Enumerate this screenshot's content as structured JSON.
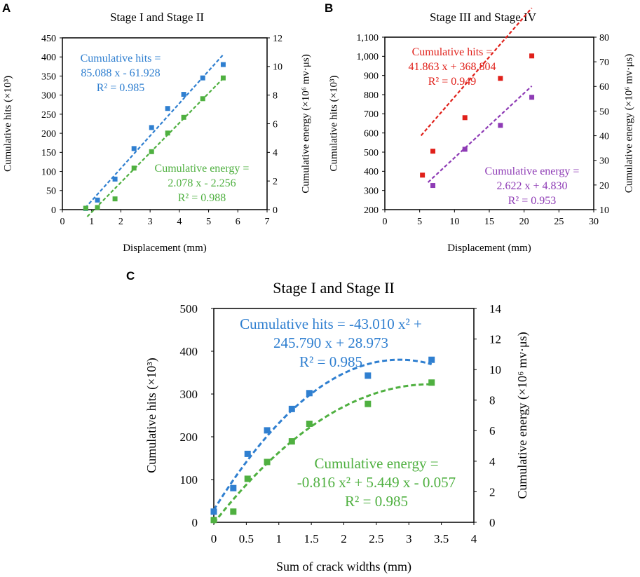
{
  "chart_data": [
    {
      "panel": "A",
      "type": "scatter",
      "title": "Stage I and Stage II",
      "xlabel": "Displacement (mm)",
      "ylabel": "Cumulative hits (×10³)",
      "y2label": "Cumulative energy (×10⁶ mv·μs)",
      "xlim": [
        0,
        7
      ],
      "x_ticks": [
        0,
        1,
        2,
        3,
        4,
        5,
        6,
        7
      ],
      "ylim": [
        0,
        450
      ],
      "y_ticks": [
        0,
        50,
        100,
        150,
        200,
        250,
        300,
        350,
        400,
        450
      ],
      "y2lim": [
        0,
        12
      ],
      "y2_ticks": [
        0,
        2,
        4,
        6,
        8,
        10,
        12
      ],
      "series": [
        {
          "name": "Cumulative hits",
          "axis": "left",
          "color": "#2f7fd0",
          "x": [
            0.8,
            1.2,
            1.8,
            2.45,
            3.05,
            3.6,
            4.15,
            4.8,
            5.5
          ],
          "y": [
            3,
            25,
            80,
            160,
            215,
            265,
            302,
            345,
            380
          ],
          "fit": {
            "kind": "linear",
            "coef": [
              85.088,
              -61.928
            ],
            "x_range": [
              0.78,
              5.5
            ]
          },
          "annotation": [
            "Cumulative hits =",
            "85.088 x - 61.928",
            "R² = 0.985"
          ]
        },
        {
          "name": "Cumulative energy",
          "axis": "right",
          "color": "#4fb040",
          "x": [
            0.8,
            1.2,
            1.8,
            2.45,
            3.05,
            3.6,
            4.15,
            4.8,
            5.5
          ],
          "y": [
            0.1,
            0.15,
            0.75,
            2.9,
            4.05,
            5.35,
            6.45,
            7.75,
            9.2
          ],
          "fit": {
            "kind": "linear",
            "coef": [
              2.078,
              -2.256
            ],
            "x_range": [
              0.85,
              5.5
            ]
          },
          "annotation": [
            "Cumulative energy =",
            "2.078 x - 2.256",
            "R² = 0.988"
          ]
        }
      ]
    },
    {
      "panel": "B",
      "type": "scatter",
      "title": "Stage III and Stage IV",
      "xlabel": "Displacement (mm)",
      "ylabel": "Cumulative hits (×10³)",
      "y2label": "Cumulative energy (×10⁶ mv·μs)",
      "xlim": [
        0,
        30
      ],
      "x_ticks": [
        0,
        5,
        10,
        15,
        20,
        25,
        30
      ],
      "ylim": [
        200,
        1100
      ],
      "y_ticks": [
        200,
        300,
        400,
        500,
        600,
        700,
        800,
        900,
        1000,
        1100
      ],
      "y_tick_labels": [
        "200",
        "300",
        "400",
        "500",
        "600",
        "700",
        "800",
        "900",
        "1,000",
        "1,100"
      ],
      "y2lim": [
        10,
        80
      ],
      "y2_ticks": [
        10,
        20,
        30,
        40,
        50,
        60,
        70,
        80
      ],
      "series": [
        {
          "name": "Cumulative hits",
          "axis": "left",
          "color": "#e0201a",
          "x": [
            5.4,
            6.9,
            11.5,
            16.6,
            21.1
          ],
          "y": [
            380,
            505,
            680,
            885,
            1002
          ],
          "fit": {
            "kind": "linear",
            "coef": [
              41.863,
              368.804
            ],
            "x_range": [
              5.2,
              21.1
            ]
          },
          "annotation": [
            "Cumulative hits  =",
            "41.863 x + 368.804",
            "R² = 0.949"
          ]
        },
        {
          "name": "Cumulative energy",
          "axis": "right",
          "color": "#8e3bb5",
          "x": [
            6.9,
            11.5,
            16.6,
            21.1
          ],
          "y": [
            19.8,
            34.5,
            44.2,
            55.6
          ],
          "fit": {
            "kind": "linear",
            "coef": [
              2.622,
              4.83
            ],
            "x_range": [
              6.2,
              21.1
            ]
          },
          "annotation": [
            "Cumulative energy =",
            "2.622 x + 4.830",
            "R² = 0.953"
          ]
        }
      ]
    },
    {
      "panel": "C",
      "type": "scatter",
      "title": "Stage I and Stage II",
      "xlabel": "Sum of crack widths (mm)",
      "ylabel": "Cumulative hits (×10³)",
      "y2label": "Cumulative energy (×10⁶ mv·μs)",
      "xlim": [
        0,
        4
      ],
      "x_ticks": [
        0,
        0.5,
        1,
        1.5,
        2,
        2.5,
        3,
        3.5,
        4
      ],
      "x_tick_labels": [
        "0",
        "0.5",
        "1",
        "1.5",
        "2",
        "2.5",
        "3",
        "3.5",
        "4"
      ],
      "ylim": [
        0,
        500
      ],
      "y_ticks": [
        0,
        100,
        200,
        300,
        400,
        500
      ],
      "y2lim": [
        0,
        14
      ],
      "y2_ticks": [
        0,
        2,
        4,
        6,
        8,
        10,
        12,
        14
      ],
      "series": [
        {
          "name": "Cumulative hits",
          "axis": "left",
          "color": "#2f7fd0",
          "x": [
            0,
            0.3,
            0.52,
            0.82,
            1.2,
            1.47,
            2.37,
            3.35
          ],
          "y": [
            25,
            80,
            160,
            215,
            265,
            302,
            343,
            380
          ],
          "fit": {
            "kind": "quadratic",
            "coef": [
              -43.01,
              245.79,
              28.973
            ],
            "x_range": [
              0,
              3.35
            ]
          },
          "annotation": [
            "Cumulative hits = -43.010 x² +",
            "245.790 x + 28.973",
            "R² = 0.985"
          ]
        },
        {
          "name": "Cumulative energy",
          "axis": "right",
          "color": "#4fb040",
          "x": [
            0,
            0.3,
            0.52,
            0.82,
            1.2,
            1.47,
            2.37,
            3.35
          ],
          "y": [
            0.15,
            0.7,
            2.85,
            3.95,
            5.3,
            6.45,
            7.75,
            9.15
          ],
          "fit": {
            "kind": "quadratic",
            "coef": [
              -0.816,
              5.449,
              -0.057
            ],
            "x_range": [
              0,
              3.35
            ]
          },
          "annotation": [
            "Cumulative energy =",
            "-0.816 x² + 5.449 x - 0.057",
            "R² = 0.985"
          ]
        }
      ]
    }
  ]
}
